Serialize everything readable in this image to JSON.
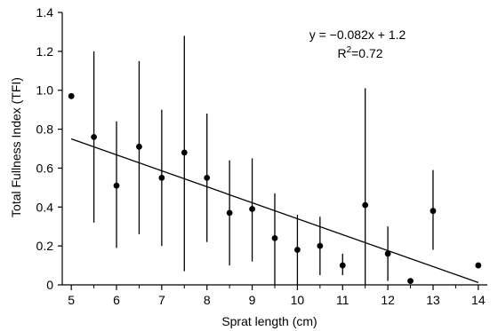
{
  "chart_data": {
    "type": "scatter",
    "title": "",
    "xlabel": "Sprat length (cm)",
    "ylabel": "Total Fullness Index (TFI)",
    "xlim": [
      4.8,
      14.2
    ],
    "ylim": [
      0,
      1.4
    ],
    "x_ticks": [
      5,
      6,
      7,
      8,
      9,
      10,
      11,
      12,
      13,
      14
    ],
    "y_ticks": [
      "0",
      "0.2",
      "0.4",
      "0.6",
      "0.8",
      "1.0",
      "1.2",
      "1.4"
    ],
    "grid": false,
    "legend": "none",
    "series": [
      {
        "points": [
          {
            "x": 5.0,
            "y": 0.97
          },
          {
            "x": 5.5,
            "y": 0.76,
            "err_low": 0.32,
            "err_high": 1.2
          },
          {
            "x": 6.0,
            "y": 0.51,
            "err_low": 0.19,
            "err_high": 0.84
          },
          {
            "x": 6.5,
            "y": 0.71,
            "err_low": 0.26,
            "err_high": 1.15
          },
          {
            "x": 7.0,
            "y": 0.55,
            "err_low": 0.2,
            "err_high": 0.9
          },
          {
            "x": 7.5,
            "y": 0.68,
            "err_low": 0.07,
            "err_high": 1.28
          },
          {
            "x": 8.0,
            "y": 0.55,
            "err_low": 0.22,
            "err_high": 0.88
          },
          {
            "x": 8.5,
            "y": 0.37,
            "err_low": 0.1,
            "err_high": 0.64
          },
          {
            "x": 9.0,
            "y": 0.39,
            "err_low": 0.12,
            "err_high": 0.65
          },
          {
            "x": 9.5,
            "y": 0.24,
            "err_low": 0.0,
            "err_high": 0.47
          },
          {
            "x": 10.0,
            "y": 0.18,
            "err_low": 0.0,
            "err_high": 0.36
          },
          {
            "x": 10.5,
            "y": 0.2,
            "err_low": 0.05,
            "err_high": 0.35
          },
          {
            "x": 11.0,
            "y": 0.1,
            "err_low": 0.05,
            "err_high": 0.16
          },
          {
            "x": 11.5,
            "y": 0.41,
            "err_low": 0.0,
            "err_high": 1.01
          },
          {
            "x": 12.0,
            "y": 0.16,
            "err_low": 0.02,
            "err_high": 0.3
          },
          {
            "x": 12.5,
            "y": 0.02
          },
          {
            "x": 13.0,
            "y": 0.38,
            "err_low": 0.18,
            "err_high": 0.59
          },
          {
            "x": 14.0,
            "y": 0.1
          }
        ]
      }
    ],
    "trendline": {
      "slope": -0.082,
      "intercept": 1.16,
      "x_range": [
        5,
        14
      ],
      "equation": "y = −0.082x + 1.2",
      "r2_prefix": "R",
      "r2_sup": "2",
      "r2_suffix": "=0.72"
    },
    "colors": {
      "marker": "#000000",
      "line": "#000000",
      "axis": "#000000"
    }
  }
}
